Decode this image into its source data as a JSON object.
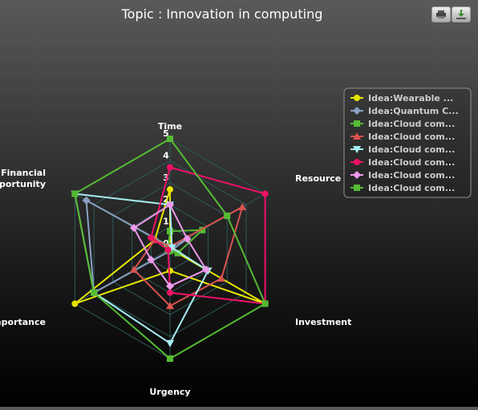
{
  "chart_data": {
    "type": "radar",
    "title": "Topic : Innovation in computing",
    "axes": [
      "Time",
      "Resource",
      "Investment",
      "Urgency",
      "Importance",
      "Financial opportunity"
    ],
    "rmax": 5,
    "ticks": [
      0,
      1,
      2,
      3,
      4,
      5
    ],
    "series": [
      {
        "name": "Idea:Wearable ...",
        "color": "#e6e600",
        "marker": "circle",
        "values": [
          2.7,
          0.0,
          5.0,
          1.0,
          5.0,
          0.8
        ]
      },
      {
        "name": "Idea:Quantum C...",
        "color": "#8aa0c2",
        "marker": "diamond",
        "values": [
          0.1,
          0.9,
          0.1,
          0.1,
          4.0,
          4.4
        ]
      },
      {
        "name": "Idea:Cloud com...",
        "color": "#55bb33",
        "marker": "square",
        "values": [
          0.8,
          1.7,
          0.4,
          0.1,
          0.1,
          0.1
        ]
      },
      {
        "name": "Idea:Cloud com...",
        "color": "#d9534f",
        "marker": "triangle",
        "values": [
          0.1,
          3.8,
          2.7,
          2.6,
          1.9,
          0.8
        ]
      },
      {
        "name": "Idea:Cloud com...",
        "color": "#a8eef2",
        "marker": "triangle-down",
        "values": [
          2.0,
          0.1,
          2.0,
          4.3,
          4.0,
          5.0
        ]
      },
      {
        "name": "Idea:Cloud com...",
        "color": "#ee1166",
        "marker": "circle",
        "values": [
          3.7,
          5.0,
          5.0,
          2.0,
          0.1,
          1.0
        ]
      },
      {
        "name": "Idea:Cloud com...",
        "color": "#ee99ee",
        "marker": "diamond",
        "values": [
          2.0,
          0.9,
          1.9,
          1.7,
          1.0,
          1.9
        ]
      },
      {
        "name": "Idea:Cloud com...",
        "color": "#55bb33",
        "marker": "square",
        "values": [
          5.0,
          3.0,
          5.0,
          5.0,
          4.0,
          5.0
        ]
      }
    ],
    "legend_position": "right"
  }
}
